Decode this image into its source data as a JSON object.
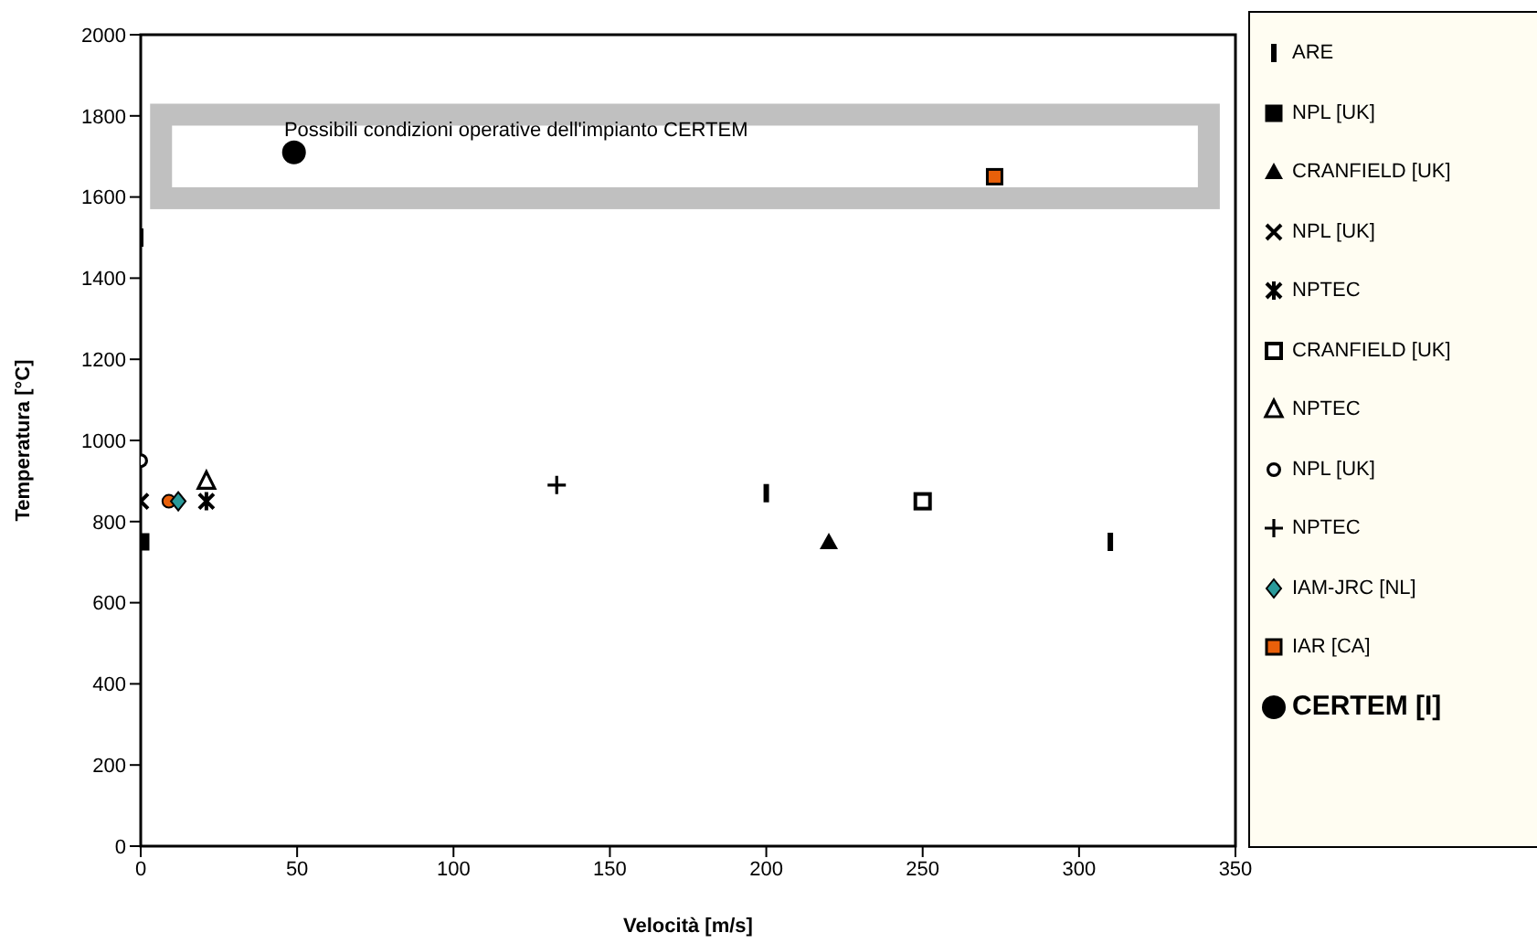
{
  "chart_data": {
    "type": "scatter",
    "xlabel": "Velocità [m/s]",
    "ylabel": "Temperatura [°C]",
    "xlim": [
      0,
      350
    ],
    "ylim": [
      0,
      2000
    ],
    "xticks": [
      0,
      50,
      100,
      150,
      200,
      250,
      300,
      350
    ],
    "yticks": [
      0,
      200,
      400,
      600,
      800,
      1000,
      1200,
      1400,
      1600,
      1800,
      2000
    ],
    "legend": "right",
    "annotations": [
      "Possibili condizioni operative dell'impianto CERTEM"
    ],
    "series": [
      {
        "name": "ARE",
        "color": "#000000",
        "x": [
          0
        ],
        "values": [
          1500
        ]
      },
      {
        "name": "NPL [UK]",
        "color": "#000000",
        "marker": "square",
        "x": [
          0
        ],
        "values": [
          750
        ]
      },
      {
        "name": "CRANFIELD [UK]",
        "color": "#000000",
        "marker": "triangle",
        "x": [
          220
        ],
        "values": [
          750
        ]
      },
      {
        "name": "NPL  [UK]",
        "color": "#000000",
        "marker": "x",
        "x": [
          0
        ],
        "values": [
          850
        ]
      },
      {
        "name": "NPTEC",
        "color": "#000000",
        "marker": "cross",
        "x": [
          21
        ],
        "values": [
          850
        ]
      },
      {
        "color": "#e8600a",
        "marker": "circle",
        "x": [
          9
        ],
        "values": [
          850
        ]
      },
      {
        "name": "CRANFIELD [UK]",
        "color": "#000000",
        "marker": "square-open",
        "x": [
          250
        ],
        "values": [
          850
        ]
      },
      {
        "color": "#000000",
        "x": [
          200,
          310
        ],
        "values": [
          870,
          750
        ]
      },
      {
        "name": "NPTEC",
        "color": "#000000",
        "marker": "triangle-open",
        "x": [
          21
        ],
        "values": [
          900
        ]
      },
      {
        "name": "NPL [UK]",
        "color": "#000000",
        "marker": "circle-open",
        "x": [
          0
        ],
        "values": [
          950
        ]
      },
      {
        "name": "NPTEC",
        "color": "#000000",
        "marker": "plus",
        "x": [
          133
        ],
        "values": [
          890
        ]
      },
      {
        "name": "IAM-JRC [NL]",
        "color": "#2a9a9a",
        "marker": "diamond",
        "x": [
          12
        ],
        "values": [
          850
        ]
      },
      {
        "name": "IAR [CA]",
        "color": "#e8600a",
        "marker": "square",
        "x": [
          273
        ],
        "values": [
          1650
        ]
      },
      {
        "name": "CERTEM [I]",
        "color": "#000000",
        "marker": "big-circle",
        "x": [
          49
        ],
        "values": [
          1710
        ]
      }
    ]
  }
}
